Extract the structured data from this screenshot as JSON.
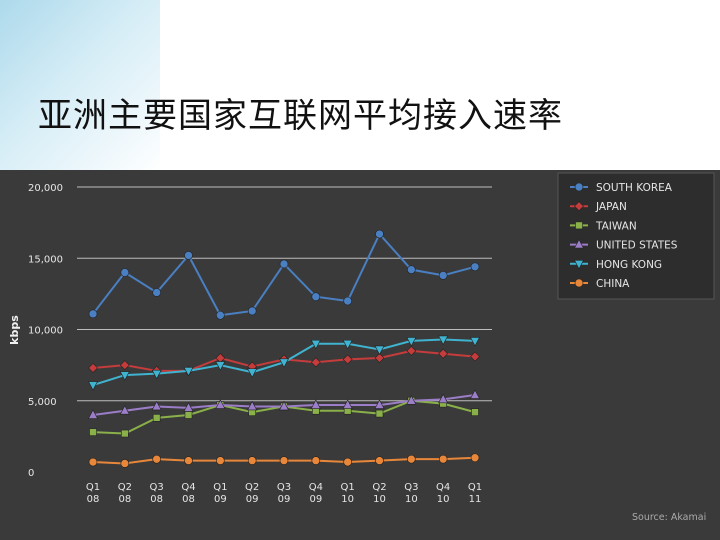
{
  "slide": {
    "title": "亚洲主要国家互联网平均接入速率"
  },
  "colors": {
    "background": "#3a3a3a",
    "grid": "#bdbdbd",
    "legend_bg": "#2d2d2d"
  },
  "chart_data": {
    "type": "line",
    "title": "",
    "xlabel": "",
    "ylabel": "kbps",
    "ylim": [
      0,
      20000
    ],
    "yticks": [
      "0",
      "5,000",
      "10,000",
      "15,000",
      "20,000"
    ],
    "ytick_values": [
      0,
      5000,
      10000,
      15000,
      20000
    ],
    "categories": [
      [
        "Q1",
        "08"
      ],
      [
        "Q2",
        "08"
      ],
      [
        "Q3",
        "08"
      ],
      [
        "Q4",
        "08"
      ],
      [
        "Q1",
        "09"
      ],
      [
        "Q2",
        "09"
      ],
      [
        "Q3",
        "09"
      ],
      [
        "Q4",
        "09"
      ],
      [
        "Q1",
        "10"
      ],
      [
        "Q2",
        "10"
      ],
      [
        "Q3",
        "10"
      ],
      [
        "Q4",
        "10"
      ],
      [
        "Q1",
        "11"
      ]
    ],
    "grid": true,
    "legend_position": "top-right",
    "source": "Source: Akamai",
    "series": [
      {
        "name": "SOUTH KOREA",
        "color": "#4a7fc1",
        "marker": "circle",
        "values": [
          11100,
          14000,
          12600,
          15200,
          11000,
          11300,
          14600,
          12300,
          12000,
          16700,
          14200,
          13800,
          14400
        ]
      },
      {
        "name": "JAPAN",
        "color": "#c43c3c",
        "marker": "diamond",
        "values": [
          7300,
          7500,
          7100,
          7100,
          8000,
          7400,
          7900,
          7700,
          7900,
          8000,
          8500,
          8300,
          8100
        ]
      },
      {
        "name": "TAIWAN",
        "color": "#8ab04a",
        "marker": "square",
        "values": [
          2800,
          2700,
          3800,
          4000,
          4700,
          4200,
          4600,
          4300,
          4300,
          4100,
          5000,
          4800,
          4200
        ]
      },
      {
        "name": "UNITED STATES",
        "color": "#9b7dc8",
        "marker": "triangle-up",
        "values": [
          4000,
          4300,
          4600,
          4500,
          4700,
          4600,
          4600,
          4700,
          4700,
          4700,
          5000,
          5100,
          5400
        ]
      },
      {
        "name": "HONG KONG",
        "color": "#3fb3cf",
        "marker": "triangle-down",
        "values": [
          6100,
          6800,
          6900,
          7100,
          7500,
          7000,
          7700,
          9000,
          9000,
          8600,
          9200,
          9300,
          9200
        ]
      },
      {
        "name": "CHINA",
        "color": "#e8873a",
        "marker": "circle",
        "values": [
          700,
          600,
          900,
          800,
          800,
          800,
          800,
          800,
          700,
          800,
          900,
          900,
          1000
        ]
      }
    ]
  }
}
